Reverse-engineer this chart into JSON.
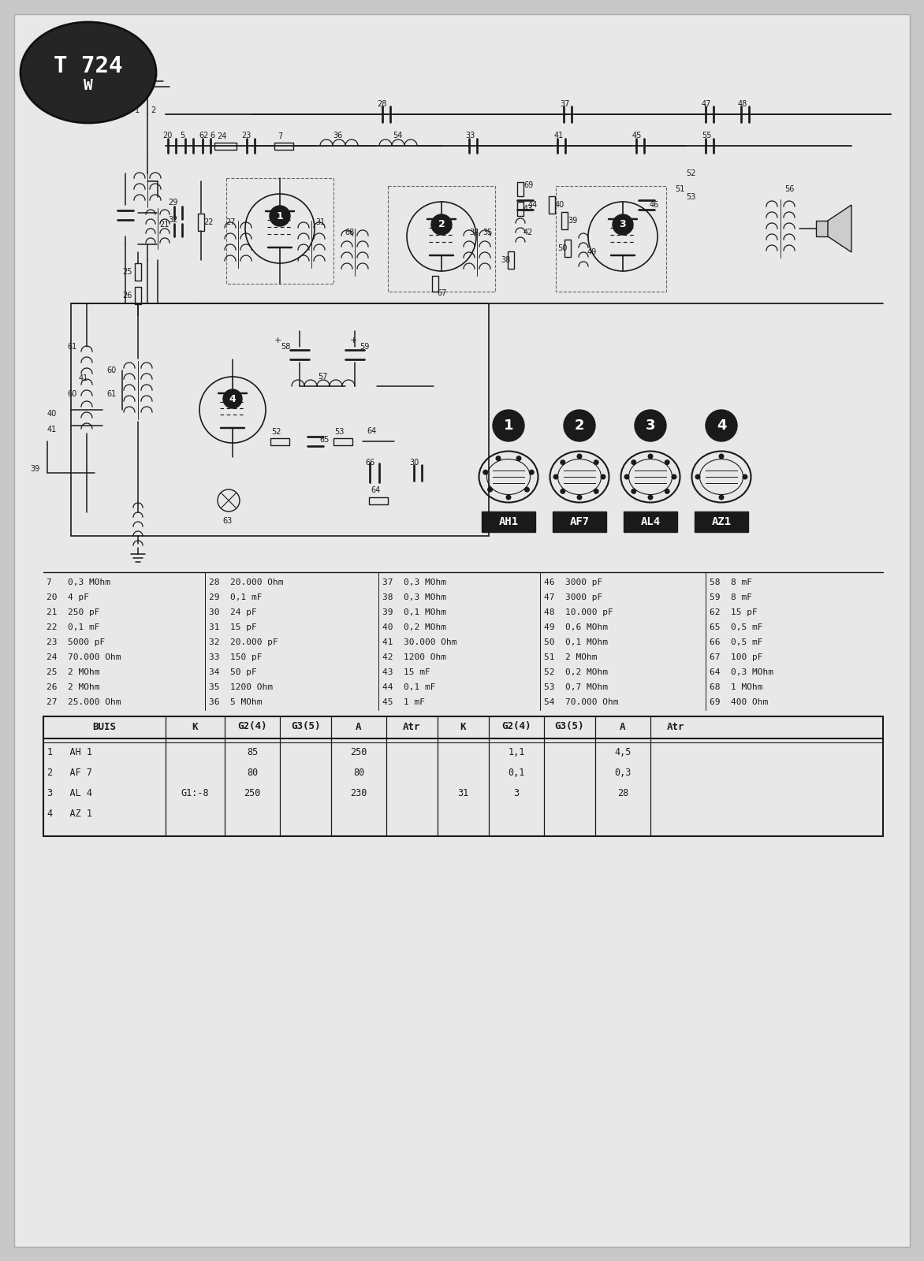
{
  "background_color": "#e0e0e0",
  "page_color": "#ececec",
  "title_text": "T 724",
  "title_sub": "W",
  "component_table": {
    "col1": [
      "7   0,3 MOhm",
      "20  4 pF",
      "21  250 pF",
      "22  0,1 mF",
      "23  5000 pF",
      "24  70.000 Ohm",
      "25  2 MOhm",
      "26  2 MOhm",
      "27  25.000 Ohm"
    ],
    "col2": [
      "28  20.000 Ohm",
      "29  0,1 mF",
      "30  24 pF",
      "31  15 pF",
      "32  20.000 pF",
      "33  150 pF",
      "34  50 pF",
      "35  1200 Ohm",
      "36  5 MOhm"
    ],
    "col3": [
      "37  0,3 MOhm",
      "38  0,3 MOhm",
      "39  0,1 MOhm",
      "40  0,2 MOhm",
      "41  30.000 Ohm",
      "42  1200 Ohm",
      "43  15 mF",
      "44  0,1 mF",
      "45  1 mF"
    ],
    "col4": [
      "46  3000 pF",
      "47  3000 pF",
      "48  10.000 pF",
      "49  0,6 MOhm",
      "50  0,1 MOhm",
      "51  2 MOhm",
      "52  0,2 MOhm",
      "53  0,7 MOhm",
      "54  70.000 Ohm"
    ],
    "col5": [
      "58  8 mF",
      "59  8 mF",
      "62  15 pF",
      "65  0,5 mF",
      "66  0,5 mF",
      "67  100 pF",
      "64  0,3 MOhm",
      "68  1 MOhm",
      "69  400 Ohm"
    ]
  },
  "tube_table_headers": [
    "BUIS",
    "K",
    "G2(4)",
    "G3(5)",
    "A",
    "Atr",
    "K",
    "G2(4)",
    "G3(5)",
    "A",
    "Atr"
  ],
  "tube_rows": [
    [
      "1   AH 1",
      "",
      "85",
      "",
      "250",
      "",
      "",
      "1,1",
      "",
      "4,5",
      ""
    ],
    [
      "2   AF 7",
      "",
      "80",
      "",
      "80",
      "",
      "",
      "0,1",
      "",
      "0,3",
      ""
    ],
    [
      "3   AL 4",
      "G1:-8",
      "250",
      "",
      "230",
      "",
      "31",
      "3",
      "",
      "28",
      ""
    ],
    [
      "4   AZ 1",
      "",
      "",
      "",
      "",
      "",
      "",
      "",
      "",
      "",
      ""
    ]
  ],
  "pinout_labels": [
    "AH1",
    "AF7",
    "AL4",
    "AZ1"
  ],
  "pinout_numbers": [
    "1",
    "2",
    "3",
    "4"
  ]
}
